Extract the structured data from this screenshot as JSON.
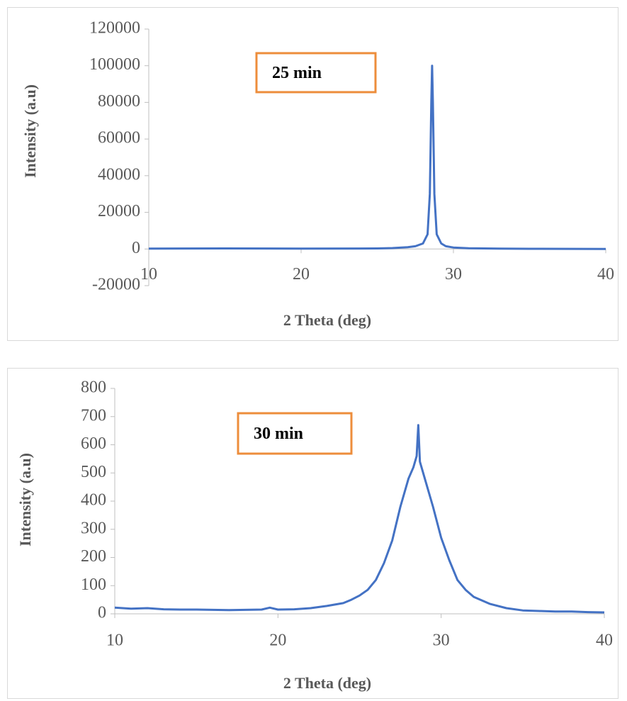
{
  "chart_data": [
    {
      "type": "line",
      "ylabel": "Intensity (a.u)",
      "xlabel": "2 Theta (deg)",
      "annotation": "25 min",
      "xlim": [
        10,
        40
      ],
      "xticks": [
        10,
        20,
        30,
        40
      ],
      "ylim": [
        -20000,
        120000
      ],
      "yticks": [
        -20000,
        0,
        20000,
        40000,
        60000,
        80000,
        100000,
        120000
      ],
      "series": [
        {
          "name": "25 min",
          "color": "#4472c4",
          "x": [
            10,
            15,
            20,
            25,
            26,
            27,
            27.5,
            28,
            28.3,
            28.45,
            28.55,
            28.6,
            28.65,
            28.75,
            28.9,
            29.2,
            29.5,
            30,
            31,
            33,
            35,
            40
          ],
          "values": [
            200,
            300,
            200,
            300,
            500,
            1000,
            1500,
            3000,
            8000,
            30000,
            80000,
            100000,
            80000,
            30000,
            8000,
            3000,
            1500,
            800,
            400,
            200,
            100,
            50
          ]
        }
      ]
    },
    {
      "type": "line",
      "ylabel": "Intensity (a.u)",
      "xlabel": "2 Theta (deg)",
      "annotation": "30 min",
      "xlim": [
        10,
        40
      ],
      "xticks": [
        10,
        20,
        30,
        40
      ],
      "ylim": [
        0,
        800
      ],
      "yticks": [
        0,
        100,
        200,
        300,
        400,
        500,
        600,
        700,
        800
      ],
      "series": [
        {
          "name": "30 min",
          "color": "#4472c4",
          "x": [
            10,
            11,
            12,
            13,
            14,
            15,
            16,
            17,
            18,
            19,
            19.5,
            20,
            21,
            22,
            23,
            24,
            24.5,
            25,
            25.5,
            26,
            26.5,
            27,
            27.5,
            28,
            28.3,
            28.5,
            28.6,
            28.7,
            29,
            29.5,
            30,
            30.5,
            31,
            31.5,
            32,
            33,
            34,
            35,
            36,
            37,
            38,
            39,
            40
          ],
          "values": [
            22,
            18,
            20,
            16,
            15,
            15,
            14,
            13,
            14,
            15,
            22,
            15,
            16,
            20,
            28,
            38,
            50,
            65,
            85,
            120,
            180,
            260,
            380,
            480,
            520,
            560,
            670,
            540,
            480,
            380,
            270,
            190,
            120,
            85,
            60,
            35,
            20,
            12,
            10,
            8,
            8,
            6,
            5
          ]
        }
      ]
    }
  ]
}
